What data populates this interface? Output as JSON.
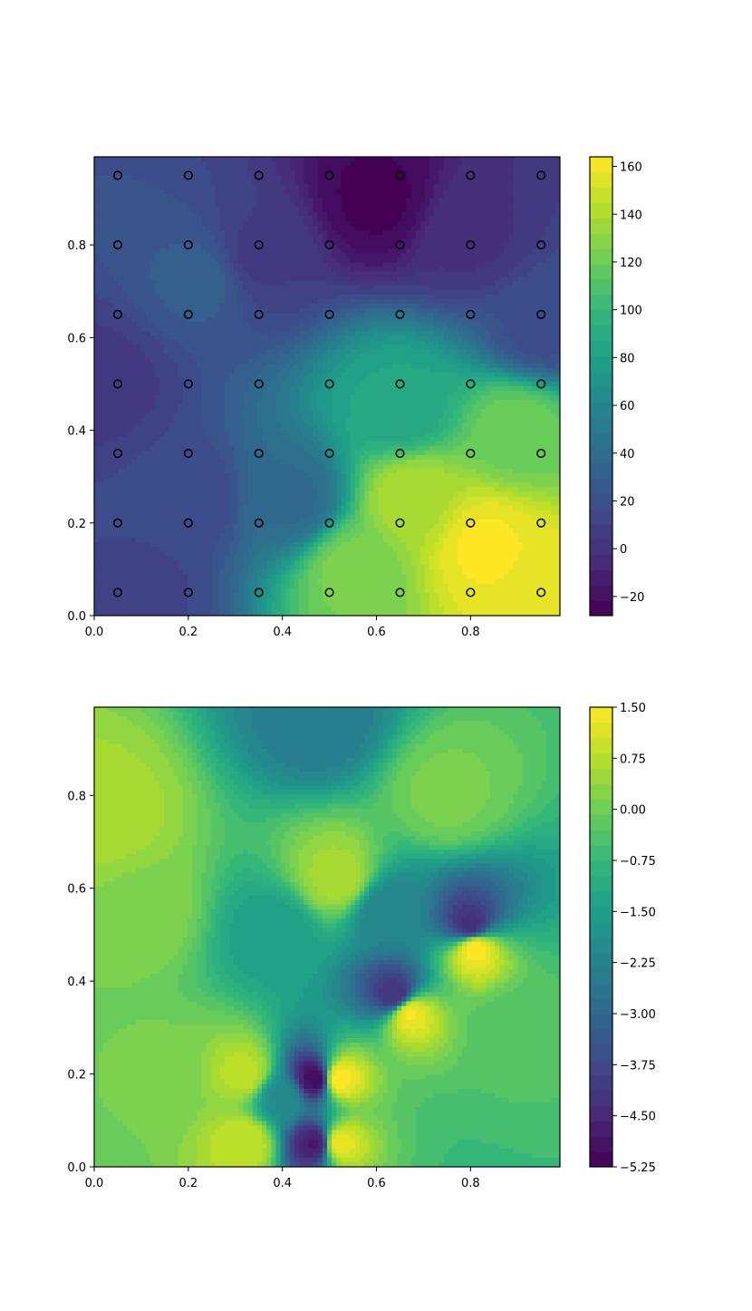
{
  "colors": {
    "viridis": [
      "#440154",
      "#482878",
      "#3e4989",
      "#31688e",
      "#26828e",
      "#1f9e89",
      "#35b779",
      "#6ece58",
      "#b5de2b",
      "#fde725"
    ],
    "marker_edge": "#000000"
  },
  "chart_data": [
    {
      "type": "heatmap",
      "plot": "filled-contour",
      "title": "",
      "xlabel": "",
      "ylabel": "",
      "xlim": [
        0.0,
        0.99
      ],
      "ylim": [
        0.0,
        0.99
      ],
      "x_ticks": [
        0.0,
        0.2,
        0.4,
        0.6,
        0.8
      ],
      "x_tick_labels": [
        "0.0",
        "0.2",
        "0.4",
        "0.6",
        "0.8"
      ],
      "y_ticks": [
        0.0,
        0.2,
        0.4,
        0.6,
        0.8
      ],
      "y_tick_labels": [
        "0.0",
        "0.2",
        "0.4",
        "0.6",
        "0.8"
      ],
      "colorbar": {
        "range": [
          -28,
          164
        ],
        "ticks": [
          160,
          140,
          120,
          100,
          80,
          60,
          40,
          20,
          0,
          -20
        ],
        "tick_labels": [
          "160",
          "140",
          "120",
          "100",
          "80",
          "60",
          "40",
          "20",
          "0",
          "−20"
        ]
      },
      "field_features": [
        {
          "x": 0.02,
          "y": 0.5,
          "value": 5
        },
        {
          "x": 0.23,
          "y": 0.73,
          "value": 28
        },
        {
          "x": 0.6,
          "y": 0.9,
          "value": -26
        },
        {
          "x": 0.35,
          "y": 0.78,
          "value": 6
        },
        {
          "x": 0.8,
          "y": 0.82,
          "value": 0
        },
        {
          "x": 0.95,
          "y": 0.62,
          "value": 18
        },
        {
          "x": 0.83,
          "y": 0.15,
          "value": 162
        },
        {
          "x": 0.95,
          "y": 0.05,
          "value": 160
        },
        {
          "x": 0.68,
          "y": 0.25,
          "value": 140
        },
        {
          "x": 0.55,
          "y": 0.1,
          "value": 125
        },
        {
          "x": 0.9,
          "y": 0.4,
          "value": 120
        },
        {
          "x": 0.65,
          "y": 0.45,
          "value": 85
        },
        {
          "x": 0.42,
          "y": 0.25,
          "value": 38
        },
        {
          "x": 0.2,
          "y": 0.25,
          "value": 15
        },
        {
          "x": 0.1,
          "y": 0.05,
          "value": 12
        }
      ],
      "markers": {
        "shape": "open-circle",
        "x": [
          0.05,
          0.2,
          0.35,
          0.5,
          0.65,
          0.8,
          0.95
        ],
        "y": [
          0.05,
          0.2,
          0.35,
          0.5,
          0.65,
          0.8,
          0.95
        ]
      }
    },
    {
      "type": "heatmap",
      "plot": "filled-contour",
      "title": "",
      "xlabel": "",
      "ylabel": "",
      "xlim": [
        0.0,
        0.99
      ],
      "ylim": [
        0.0,
        0.99
      ],
      "x_ticks": [
        0.0,
        0.2,
        0.4,
        0.6,
        0.8
      ],
      "x_tick_labels": [
        "0.0",
        "0.2",
        "0.4",
        "0.6",
        "0.8"
      ],
      "y_ticks": [
        0.0,
        0.2,
        0.4,
        0.6,
        0.8
      ],
      "y_tick_labels": [
        "0.0",
        "0.2",
        "0.4",
        "0.6",
        "0.8"
      ],
      "colorbar": {
        "range": [
          -5.25,
          1.5
        ],
        "ticks": [
          1.5,
          0.75,
          0.0,
          -0.75,
          -1.5,
          -2.25,
          -3.0,
          -3.75,
          -4.5,
          -5.25
        ],
        "tick_labels": [
          "1.50",
          "0.75",
          "0.00",
          "−0.75",
          "−1.50",
          "−2.25",
          "−3.00",
          "−3.75",
          "−4.50",
          "−5.25"
        ]
      },
      "field_features": [
        {
          "x": 0.03,
          "y": 0.75,
          "value": 0.6
        },
        {
          "x": 0.1,
          "y": 0.55,
          "value": 0.2
        },
        {
          "x": 0.15,
          "y": 0.2,
          "value": 0.1
        },
        {
          "x": 0.39,
          "y": 0.5,
          "value": -1.5
        },
        {
          "x": 0.4,
          "y": 0.15,
          "value": -2.0
        },
        {
          "x": 0.48,
          "y": 0.96,
          "value": -2.4
        },
        {
          "x": 0.47,
          "y": 0.19,
          "value": -5.0
        },
        {
          "x": 0.47,
          "y": 0.05,
          "value": -4.7
        },
        {
          "x": 0.52,
          "y": 0.19,
          "value": 1.5
        },
        {
          "x": 0.52,
          "y": 0.05,
          "value": 1.3
        },
        {
          "x": 0.64,
          "y": 0.37,
          "value": -4.2
        },
        {
          "x": 0.67,
          "y": 0.33,
          "value": 1.4
        },
        {
          "x": 0.8,
          "y": 0.52,
          "value": -4.3
        },
        {
          "x": 0.81,
          "y": 0.47,
          "value": 1.5
        },
        {
          "x": 0.62,
          "y": 0.55,
          "value": -2.2
        },
        {
          "x": 0.32,
          "y": 0.05,
          "value": 0.9
        },
        {
          "x": 0.32,
          "y": 0.2,
          "value": 0.8
        },
        {
          "x": 0.52,
          "y": 0.62,
          "value": 0.6
        },
        {
          "x": 0.9,
          "y": 0.3,
          "value": -0.3
        },
        {
          "x": 0.75,
          "y": 0.8,
          "value": 0.1
        }
      ]
    }
  ]
}
